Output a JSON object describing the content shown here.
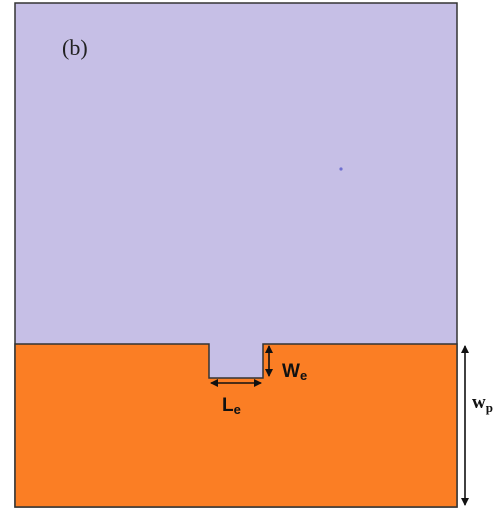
{
  "figure": {
    "panel_label": "(b)",
    "colors": {
      "substrate": "#c6bfe6",
      "ground_plane": "#fb7e24",
      "outline": "#333333",
      "dimension_arrow": "#111111"
    },
    "labels": {
      "slot_width": {
        "main": "W",
        "sub": "e"
      },
      "slot_length": {
        "main": "L",
        "sub": "e"
      },
      "ground_width": {
        "main": "w",
        "sub": "p"
      }
    }
  }
}
